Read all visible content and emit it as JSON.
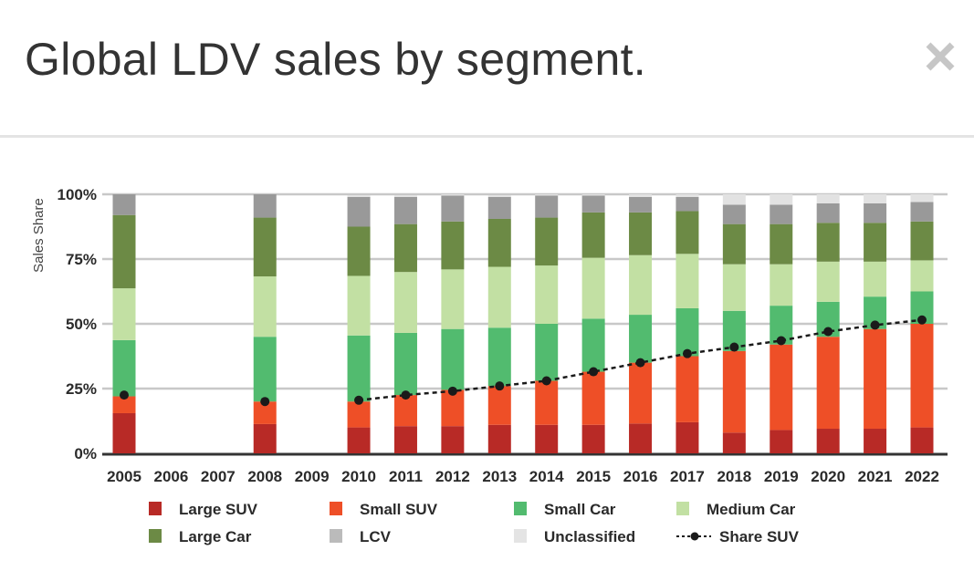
{
  "header": {
    "title": "Global LDV sales by segment.",
    "close_icon": "close-icon"
  },
  "chart_data": {
    "type": "bar",
    "stacked": true,
    "title": "Global LDV sales by segment.",
    "xlabel": "",
    "ylabel": "Sales Share",
    "ylim": [
      0,
      100
    ],
    "yticks": [
      "0%",
      "25%",
      "50%",
      "75%",
      "100%"
    ],
    "ytick_values": [
      0,
      25,
      50,
      75,
      100
    ],
    "grid": true,
    "legend_position": "bottom",
    "categories": [
      "2005",
      "2006",
      "2007",
      "2008",
      "2009",
      "2010",
      "2011",
      "2012",
      "2013",
      "2014",
      "2015",
      "2016",
      "2017",
      "2018",
      "2019",
      "2020",
      "2021",
      "2022"
    ],
    "series": [
      {
        "name": "Large SUV",
        "color": "#b82a26",
        "values": [
          15.5,
          null,
          null,
          11.3,
          null,
          10,
          10.5,
          10.5,
          11,
          11,
          11,
          11.5,
          12,
          8,
          9,
          9.5,
          9.5,
          10
        ]
      },
      {
        "name": "Small SUV",
        "color": "#ee4f27",
        "values": [
          6.5,
          null,
          null,
          8.7,
          null,
          10,
          12,
          14,
          15,
          17,
          20.5,
          23.5,
          25.5,
          31.5,
          33,
          35.5,
          38.5,
          40
        ]
      },
      {
        "name": "Small Car",
        "color": "#52bb6f",
        "values": [
          21.7,
          null,
          null,
          25,
          null,
          25.5,
          24,
          23.5,
          22.5,
          22,
          20.5,
          18.5,
          18.5,
          15.5,
          15,
          13.5,
          12.5,
          12.5
        ]
      },
      {
        "name": "Medium Car",
        "color": "#c2e0a3",
        "values": [
          20,
          null,
          null,
          23.3,
          null,
          23,
          23.5,
          23,
          23.5,
          22.5,
          23.5,
          23,
          21,
          18,
          16,
          15.5,
          13.5,
          12
        ]
      },
      {
        "name": "Large Car",
        "color": "#6c8a45",
        "values": [
          28.3,
          null,
          null,
          22.7,
          null,
          19,
          18.5,
          18.5,
          18.5,
          18.5,
          17.5,
          16.5,
          16.5,
          15.5,
          15.5,
          15,
          15,
          15
        ]
      },
      {
        "name": "LCV",
        "color": "#999999",
        "values": [
          8,
          null,
          null,
          9,
          null,
          11.5,
          10.5,
          10,
          8.5,
          8.5,
          6.5,
          6,
          5.5,
          7.5,
          7.5,
          7.5,
          7.5,
          7.5
        ]
      },
      {
        "name": "Unclassified",
        "color": "#e2e2e2",
        "values": [
          0,
          null,
          null,
          0,
          null,
          0.5,
          0.5,
          0.5,
          0.5,
          0.5,
          0.5,
          1,
          1,
          4,
          4,
          3.5,
          3.5,
          3
        ]
      }
    ],
    "line_series": {
      "name": "Share SUV",
      "style": "dotted",
      "color": "#1a1a1a",
      "values": [
        22.5,
        null,
        null,
        20,
        null,
        20.5,
        22.5,
        24,
        26,
        28,
        31.5,
        35,
        38.5,
        41,
        43.5,
        47,
        49.5,
        51.5
      ]
    },
    "legend": [
      {
        "label": "Large SUV",
        "color": "#b82a26",
        "kind": "box"
      },
      {
        "label": "Small SUV",
        "color": "#ee4f27",
        "kind": "box"
      },
      {
        "label": "Small Car",
        "color": "#52bb6f",
        "kind": "box"
      },
      {
        "label": "Medium Car",
        "color": "#c2e0a3",
        "kind": "box"
      },
      {
        "label": "Large Car",
        "color": "#6c8a45",
        "kind": "box"
      },
      {
        "label": "LCV",
        "color": "#bbbbbb",
        "kind": "box"
      },
      {
        "label": "Unclassified",
        "color": "#e4e4e4",
        "kind": "box"
      },
      {
        "label": "Share SUV",
        "color": "#1a1a1a",
        "kind": "line"
      }
    ]
  }
}
